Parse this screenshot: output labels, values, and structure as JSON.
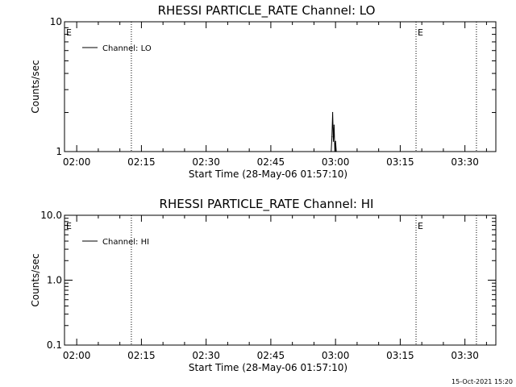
{
  "footer": {
    "timestamp": "15-Oct-2021 15:20"
  },
  "chart_data": [
    {
      "type": "line",
      "title": "RHESSI PARTICLE_RATE Channel: LO",
      "xlabel": "Start Time (28-May-06 01:57:10)",
      "ylabel": "Counts/sec",
      "yscale": "log",
      "xlim": [
        "01:57:10",
        "03:37:10"
      ],
      "ylim": [
        1,
        10
      ],
      "xticks": [
        "02:00",
        "02:15",
        "02:30",
        "02:45",
        "03:00",
        "03:15",
        "03:30"
      ],
      "yticks": [
        "1",
        "10"
      ],
      "series": [
        {
          "name": "Channel: LO",
          "x": [
            "02:59:00",
            "02:59:10",
            "02:59:20",
            "02:59:30",
            "02:59:40",
            "02:59:50",
            "03:00:00",
            "03:00:10"
          ],
          "values": [
            1,
            1.3,
            2,
            1.2,
            1.6,
            1,
            1.2,
            1
          ]
        }
      ],
      "event_markers": [
        {
          "x": "02:12:40",
          "label": ""
        },
        {
          "x": "03:18:40",
          "label": "E"
        },
        {
          "x": "03:32:40",
          "label": ""
        }
      ],
      "left_marker": "E",
      "legend_position": "top-left",
      "grid": false
    },
    {
      "type": "line",
      "title": "RHESSI PARTICLE_RATE Channel: HI",
      "xlabel": "Start Time (28-May-06 01:57:10)",
      "ylabel": "Counts/sec",
      "yscale": "log",
      "xlim": [
        "01:57:10",
        "03:37:10"
      ],
      "ylim": [
        0.1,
        10
      ],
      "xticks": [
        "02:00",
        "02:15",
        "02:30",
        "02:45",
        "03:00",
        "03:15",
        "03:30"
      ],
      "yticks": [
        "0.1",
        "1.0",
        "10.0"
      ],
      "series": [
        {
          "name": "Channel: HI",
          "x": [],
          "values": []
        }
      ],
      "event_markers": [
        {
          "x": "02:12:40",
          "label": ""
        },
        {
          "x": "03:18:40",
          "label": "E"
        },
        {
          "x": "03:32:40",
          "label": ""
        }
      ],
      "left_marker": "E",
      "legend_position": "top-left",
      "grid": false
    }
  ]
}
